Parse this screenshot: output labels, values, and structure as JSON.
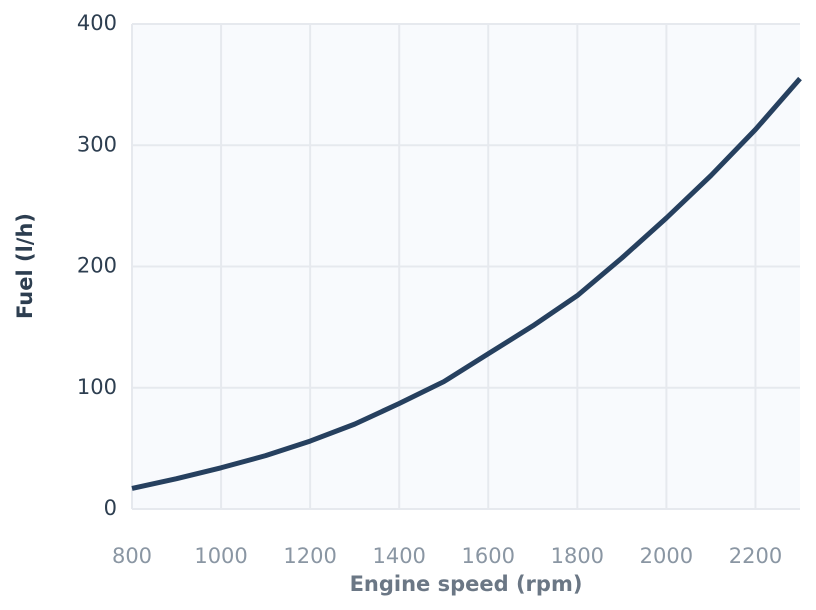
{
  "chart_data": {
    "type": "line",
    "x_label": "Engine speed (rpm)",
    "y_label": "Fuel (l/h)",
    "x": [
      800,
      900,
      1000,
      1100,
      1200,
      1300,
      1400,
      1500,
      1600,
      1700,
      1800,
      1900,
      2000,
      2100,
      2200,
      2300
    ],
    "series": [
      {
        "name": "Fuel",
        "color": "#26405f",
        "values": [
          17,
          25,
          34,
          44,
          56,
          70,
          87,
          105,
          128,
          151,
          176,
          207,
          240,
          275,
          313,
          355
        ]
      }
    ],
    "xlim": [
      800,
      2300
    ],
    "ylim": [
      0,
      400
    ],
    "xticks": [
      800,
      1000,
      1200,
      1400,
      1600,
      1800,
      2000,
      2200
    ],
    "yticks": [
      0,
      100,
      200,
      300,
      400
    ],
    "grid": true
  }
}
